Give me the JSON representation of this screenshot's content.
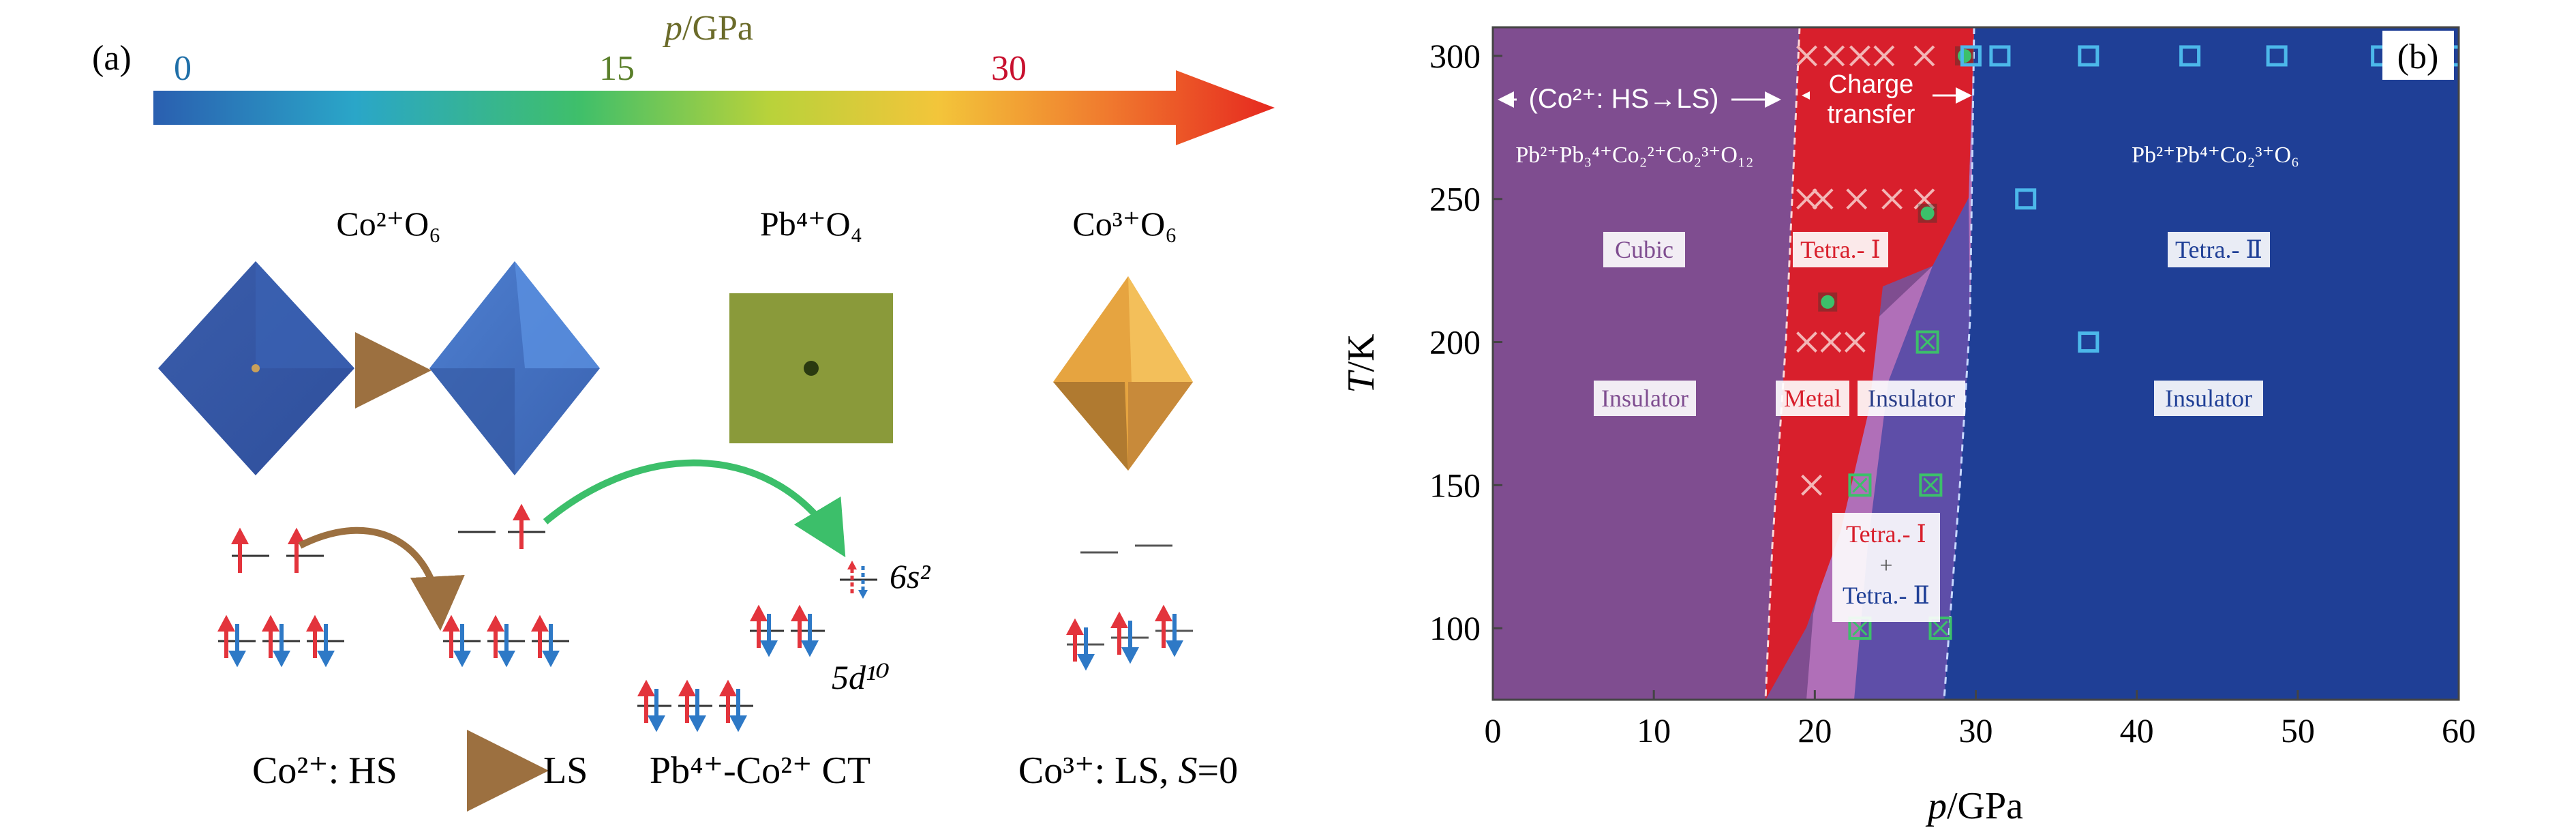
{
  "panel_a": {
    "label": "(a)",
    "pressure_axis": {
      "title_var": "p",
      "title_unit": "/GPa",
      "ticks": [
        {
          "text": "0",
          "color": "#1f6fa8"
        },
        {
          "text": "15",
          "color": "#5a7f2a"
        },
        {
          "text": "30",
          "color": "#c8102e"
        }
      ],
      "gradient": [
        "#2a5fb0",
        "#2aa6c8",
        "#3fbf6a",
        "#b9d23a",
        "#f3c53a",
        "#f07a2e",
        "#e6281f"
      ]
    },
    "structures": {
      "co2": {
        "title": "Co²⁺O₆",
        "color": "#3f63b2"
      },
      "pb4": {
        "title": "Pb⁴⁺O₄",
        "color": "#8a9a3a"
      },
      "co3": {
        "title": "Co³⁺O₆",
        "color": "#e2a040"
      }
    },
    "orbitals": {
      "s_label": "6s²",
      "d_label": "5d¹⁰"
    },
    "captions": {
      "co2": {
        "prefix": "Co²⁺: HS",
        "suffix": "LS"
      },
      "pb": "Pb⁴⁺-Co²⁺ CT",
      "co3_prefix": "Co³⁺: LS, ",
      "co3_var": "S",
      "co3_suffix": "=0"
    },
    "colors": {
      "arrow_brown": "#9c7040",
      "arrow_green": "#3cbf6a",
      "spin_red": "#e3343c",
      "spin_blue": "#2e79c6"
    }
  },
  "chart_data": {
    "type": "scatter",
    "label": "(b)",
    "xlabel_var": "p",
    "xlabel_unit": "/GPa",
    "ylabel_var": "T",
    "ylabel_unit": "/K",
    "xlim": [
      0,
      60
    ],
    "ylim": [
      75,
      310
    ],
    "xticks": [
      0,
      10,
      20,
      30,
      40,
      50,
      60
    ],
    "yticks": [
      100,
      150,
      200,
      250,
      300
    ],
    "regions": [
      {
        "name": "cubic",
        "color": "#7f4d90"
      },
      {
        "name": "charge-transfer",
        "color": "#d81f2c"
      },
      {
        "name": "mixed",
        "color": "#b06fb8"
      },
      {
        "name": "tetra-II",
        "color": "#1f3f96"
      }
    ],
    "texts": {
      "cs_annot": "(Co²⁺: HS→LS)",
      "ct_annot_1": "Charge",
      "ct_annot_2": "transfer",
      "formula_left": "Pb²⁺Pb₃⁴⁺Co₂²⁺Co₂³⁺O₁₂",
      "formula_right": "Pb²⁺Pb⁴⁺Co₂³⁺O₆",
      "cubic": "Cubic",
      "tetra_i": "Tetra.- Ⅰ",
      "tetra_ii": "Tetra.- Ⅱ",
      "insulator_1": "Insulator",
      "metal": "Metal",
      "insulator_2": "Insulator",
      "insulator_3": "Insulator",
      "mixed_1": "Tetra.- Ⅰ",
      "mixed_plus": "+",
      "mixed_2": "Tetra.- Ⅱ"
    },
    "series": [
      {
        "marker": "cross",
        "color": "#f3b6b6",
        "points": [
          [
            19.5,
            300
          ],
          [
            21.2,
            300
          ],
          [
            22.8,
            300
          ],
          [
            24.3,
            300
          ],
          [
            26.8,
            300
          ],
          [
            19.5,
            250
          ],
          [
            20.5,
            250
          ],
          [
            22.6,
            250
          ],
          [
            24.8,
            250
          ],
          [
            26.8,
            250
          ],
          [
            19.5,
            200
          ],
          [
            21,
            200
          ],
          [
            22.5,
            200
          ],
          [
            19.8,
            150
          ]
        ]
      },
      {
        "marker": "filled-circle",
        "color": "#3cc06a",
        "points": [
          [
            29.3,
            300
          ],
          [
            27,
            245
          ],
          [
            20.8,
            214
          ]
        ]
      },
      {
        "marker": "crossed-circle",
        "color": "#3cc06a",
        "points": [
          [
            22.8,
            150
          ],
          [
            27.2,
            150
          ],
          [
            22.8,
            100
          ],
          [
            27.8,
            100
          ],
          [
            27,
            200
          ]
        ]
      },
      {
        "marker": "open-square",
        "color": "#4cb8ea",
        "points": [
          [
            29.7,
            300
          ],
          [
            31.5,
            300
          ],
          [
            37,
            300
          ],
          [
            43.3,
            300
          ],
          [
            48.7,
            300
          ],
          [
            55.2,
            300
          ],
          [
            59.7,
            300
          ],
          [
            33.1,
            250
          ],
          [
            37,
            200
          ]
        ]
      }
    ]
  }
}
